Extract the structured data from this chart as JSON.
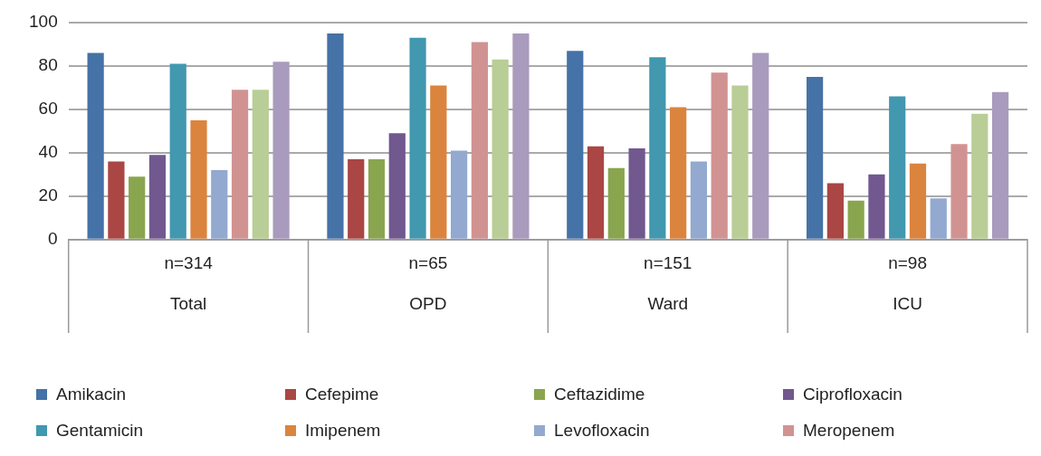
{
  "chart_data": {
    "type": "bar",
    "categories": [
      "n=314\nTotal",
      "n=65\nOPD",
      "n=151\nWard",
      "n=98\nICU"
    ],
    "series": [
      {
        "name": "Amikacin",
        "color": "#4572a7",
        "values": [
          86,
          95,
          87,
          75
        ]
      },
      {
        "name": "Cefepime",
        "color": "#aa4643",
        "values": [
          36,
          37,
          43,
          26
        ]
      },
      {
        "name": "Ceftazidime",
        "color": "#89a54e",
        "values": [
          29,
          37,
          33,
          18
        ]
      },
      {
        "name": "Ciprofloxacin",
        "color": "#71588f",
        "values": [
          39,
          49,
          42,
          30
        ]
      },
      {
        "name": "Gentamicin",
        "color": "#4198af",
        "values": [
          81,
          93,
          84,
          66
        ]
      },
      {
        "name": "Imipenem",
        "color": "#db843d",
        "values": [
          55,
          71,
          61,
          35
        ]
      },
      {
        "name": "Levofloxacin",
        "color": "#93a9cf",
        "values": [
          32,
          41,
          36,
          19
        ]
      },
      {
        "name": "Meropenem",
        "color": "#d19392",
        "values": [
          69,
          91,
          77,
          44
        ]
      },
      {
        "color": "#b9cd96",
        "values": [
          69,
          83,
          71,
          58
        ]
      },
      {
        "color": "#a99bbd",
        "values": [
          82,
          95,
          86,
          68
        ]
      }
    ],
    "ylim": [
      0,
      100
    ],
    "yticks": [
      0,
      20,
      40,
      60,
      80,
      100
    ],
    "grid": "y",
    "legend": "bottom"
  }
}
